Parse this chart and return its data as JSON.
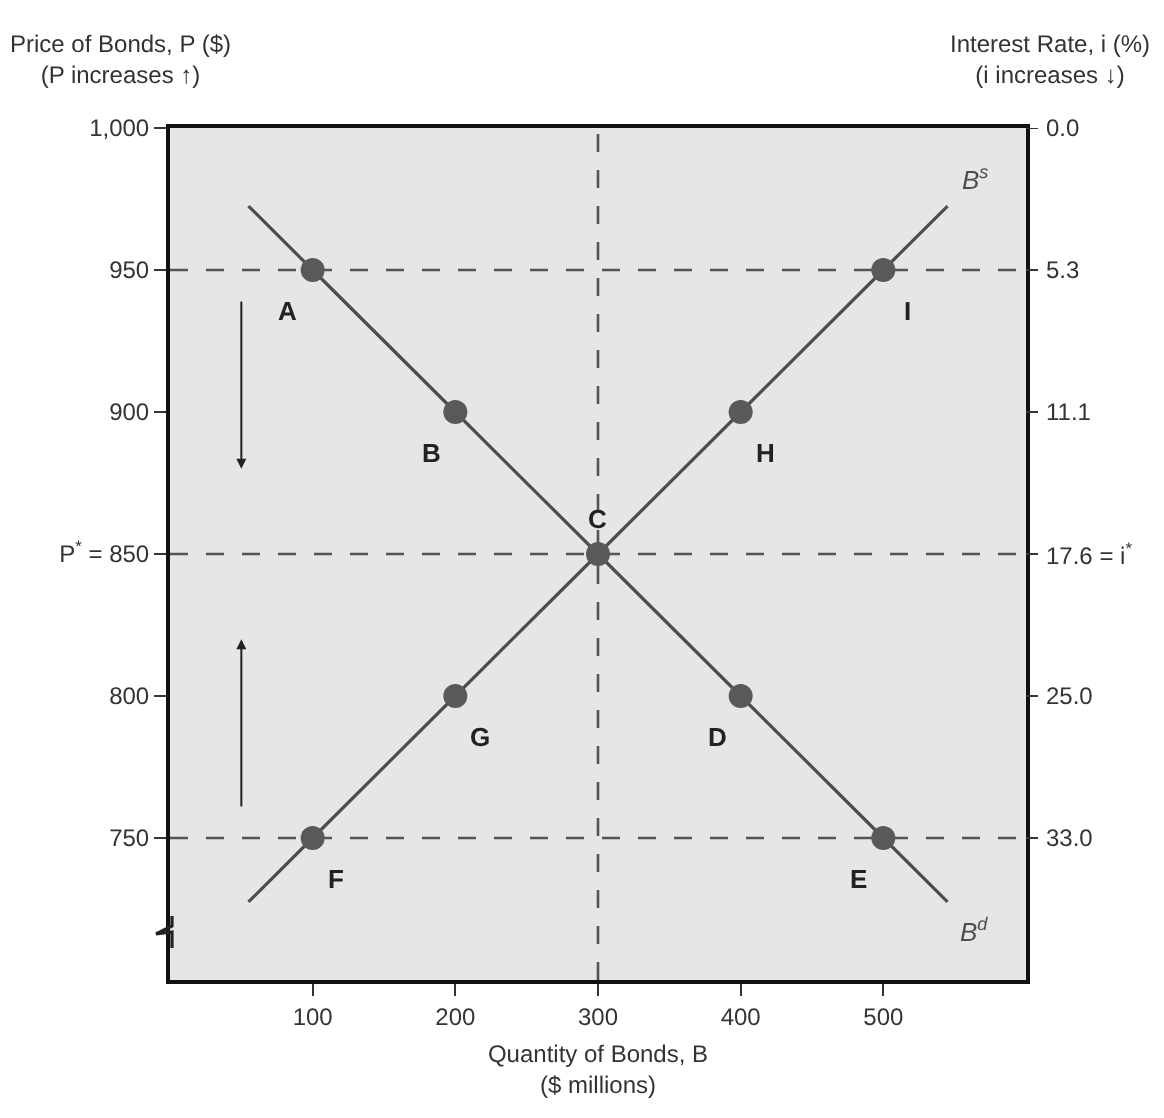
{
  "chart_data": {
    "type": "line",
    "xlabel": "Quantity of Bonds, B\n($ millions)",
    "ylabel": "Price of Bonds, P ($)\n(P increases ↑)",
    "y2label": "Interest Rate, i (%)\n(i increases ↓)",
    "xlim": [
      0,
      600
    ],
    "xticks": [
      100,
      200,
      300,
      400,
      500
    ],
    "ylim": [
      700,
      1000
    ],
    "yticks": [
      {
        "value": 1000,
        "label": "1,000"
      },
      950,
      900,
      {
        "value": 850,
        "label": "P$^{*}$ = 850"
      },
      800,
      750
    ],
    "series": [
      {
        "name": "B$^{d}$",
        "color": "#4d4d4d",
        "marker": "none",
        "x": [
          55,
          100,
          200,
          300,
          400,
          500,
          545
        ],
        "values": [
          972.5,
          950,
          900,
          850,
          800,
          750,
          727.5
        ]
      },
      {
        "name": "B$^{s}$",
        "color": "#4d4d4d",
        "marker": "none",
        "x": [
          55,
          100,
          200,
          300,
          400,
          500,
          545
        ],
        "values": [
          727.5,
          750,
          800,
          850,
          900,
          950,
          972.5
        ]
      },
      {
        "type": "scatter",
        "color": "#595959",
        "marker": "circle",
        "x": [
          100,
          200,
          300,
          400,
          500,
          100,
          200,
          400,
          500
        ],
        "values": [
          950,
          900,
          850,
          800,
          750,
          750,
          800,
          900,
          950
        ]
      }
    ],
    "ref_lines": [
      {
        "axis": "y",
        "value": 950,
        "line_style": "dashed",
        "color": "#555555"
      },
      {
        "axis": "y",
        "value": 850,
        "line_style": "dashed",
        "color": "#555555"
      },
      {
        "axis": "y",
        "value": 750,
        "line_style": "dashed",
        "color": "#555555"
      },
      {
        "axis": "x",
        "value": 300,
        "line_style": "dashed",
        "color": "#555555"
      }
    ],
    "annotations": [
      {
        "text": "A",
        "x": 100,
        "y": 950
      },
      {
        "text": "B",
        "x": 200,
        "y": 900
      },
      {
        "text": "C",
        "x": 300,
        "y": 850
      },
      {
        "text": "D",
        "x": 400,
        "y": 800
      },
      {
        "text": "E",
        "x": 500,
        "y": 750
      },
      {
        "text": "F",
        "x": 100,
        "y": 750
      },
      {
        "text": "G",
        "x": 200,
        "y": 800
      },
      {
        "text": "H",
        "x": 400,
        "y": 900
      },
      {
        "text": "I",
        "x": 500,
        "y": 950
      },
      "0.0",
      "5.3",
      "11.1",
      "17.6 = i$^{*}$",
      "25.0",
      "33.0"
    ],
    "grid": false,
    "legend": false
  }
}
